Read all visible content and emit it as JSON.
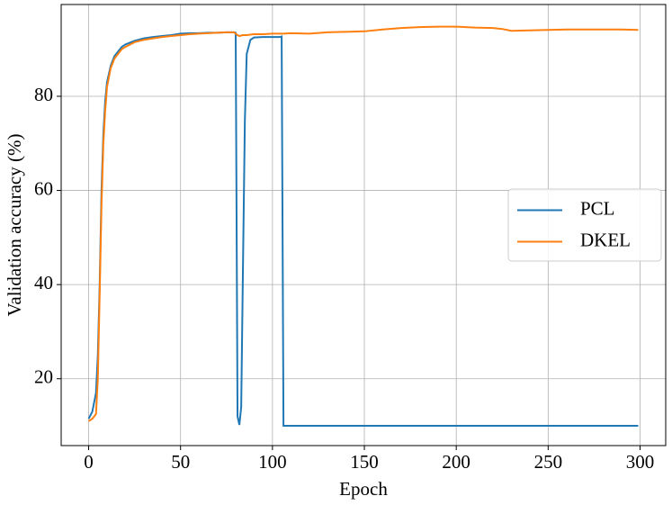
{
  "chart_data": {
    "type": "line",
    "xlabel": "Epoch",
    "ylabel": "Validation accuracy (%)",
    "x": [
      0,
      2,
      4,
      5,
      6,
      7,
      8,
      9,
      10,
      12,
      14,
      16,
      18,
      20,
      25,
      30,
      35,
      40,
      45,
      50,
      55,
      60,
      65,
      70,
      75,
      79,
      80,
      81,
      82,
      83,
      84,
      85,
      86,
      88,
      90,
      95,
      100,
      104,
      105,
      106,
      110,
      120,
      130,
      140,
      150,
      160,
      170,
      180,
      190,
      200,
      210,
      220,
      225,
      230,
      240,
      250,
      260,
      270,
      280,
      290,
      299
    ],
    "series": [
      {
        "name": "PCL",
        "color": "#1f77b4",
        "values": [
          11.5,
          13,
          17,
          25,
          40,
          60,
          72,
          79,
          83,
          86.5,
          88.5,
          89.5,
          90.5,
          91,
          91.8,
          92.3,
          92.6,
          92.8,
          93,
          93.3,
          93.4,
          93.4,
          93.5,
          93.5,
          93.6,
          93.6,
          93.5,
          12,
          10.2,
          14,
          45,
          75,
          89,
          92,
          92.5,
          92.6,
          92.6,
          92.6,
          92.7,
          10,
          10,
          10,
          10,
          10,
          10,
          10,
          10,
          10,
          10,
          10,
          10,
          10,
          10,
          10,
          10,
          10,
          10,
          10,
          10,
          10,
          10
        ]
      },
      {
        "name": "DKEL",
        "color": "#ff7f0e",
        "values": [
          11,
          11.5,
          12.5,
          20,
          38,
          57,
          70,
          77,
          82,
          86,
          88,
          89,
          90,
          90.5,
          91.5,
          92,
          92.3,
          92.6,
          92.8,
          93,
          93.2,
          93.3,
          93.4,
          93.5,
          93.6,
          93.6,
          93.3,
          93,
          92.8,
          92.9,
          93,
          93,
          93,
          93.1,
          93.2,
          93.2,
          93.3,
          93.3,
          93.3,
          93.3,
          93.4,
          93.3,
          93.6,
          93.7,
          93.8,
          94.2,
          94.5,
          94.7,
          94.8,
          94.8,
          94.6,
          94.5,
          94.3,
          93.9,
          94,
          94.1,
          94.2,
          94.2,
          94.2,
          94.2,
          94.1
        ]
      }
    ],
    "xlim": [
      -14.95,
      313.95
    ],
    "ylim": [
      5.8,
      99.5
    ],
    "xticks": [
      0,
      50,
      100,
      150,
      200,
      250,
      300
    ],
    "yticks": [
      20,
      40,
      60,
      80
    ],
    "grid": true,
    "legend": "center right"
  }
}
